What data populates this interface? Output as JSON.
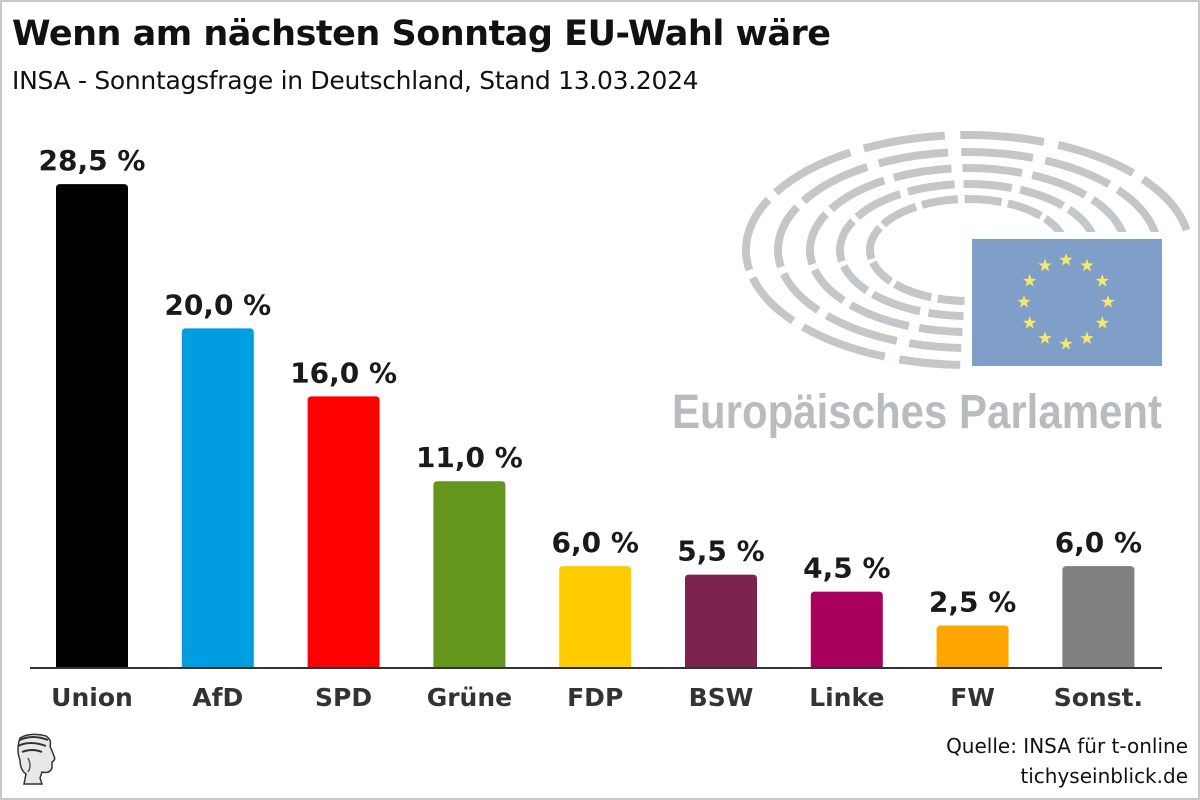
{
  "header": {
    "title": "Wenn am nächsten Sonntag EU-Wahl wäre",
    "subtitle": "INSA - Sonntagsfrage in Deutschland, Stand 13.03.2024"
  },
  "logo": {
    "ep_text": "Europäisches Parlament",
    "ep_icon": "european-parliament-hemicycle-icon",
    "flag_icon": "eu-flag-icon",
    "flag_color": "#7f9fc8",
    "star_color": "#f7e86a",
    "arc_color": "#c4c7ca"
  },
  "footer": {
    "source": "Quelle: INSA für t-online",
    "site": "tichyseinblick.de",
    "publisher_icon": "hermes-head-icon"
  },
  "chart_data": {
    "type": "bar",
    "title": "Wenn am nächsten Sonntag EU-Wahl wäre",
    "subtitle": "INSA - Sonntagsfrage in Deutschland, Stand 13.03.2024",
    "xlabel": "",
    "ylabel": "",
    "ylim": [
      0,
      30
    ],
    "grid": false,
    "legend": "none",
    "categories": [
      "Union",
      "AfD",
      "SPD",
      "Grüne",
      "FDP",
      "BSW",
      "Linke",
      "FW",
      "Sonst."
    ],
    "values": [
      28.5,
      20.0,
      16.0,
      11.0,
      6.0,
      5.5,
      4.5,
      2.5,
      6.0
    ],
    "labels": [
      "28,5 %",
      "20,0 %",
      "16,0 %",
      "11,0 %",
      "6,0 %",
      "5,5 %",
      "4,5 %",
      "2,5 %",
      "6,0 %"
    ],
    "colors": [
      "#000000",
      "#009ee0",
      "#ff0000",
      "#64961e",
      "#ffcc00",
      "#7c244f",
      "#a8005c",
      "#ffa500",
      "#808080"
    ]
  }
}
